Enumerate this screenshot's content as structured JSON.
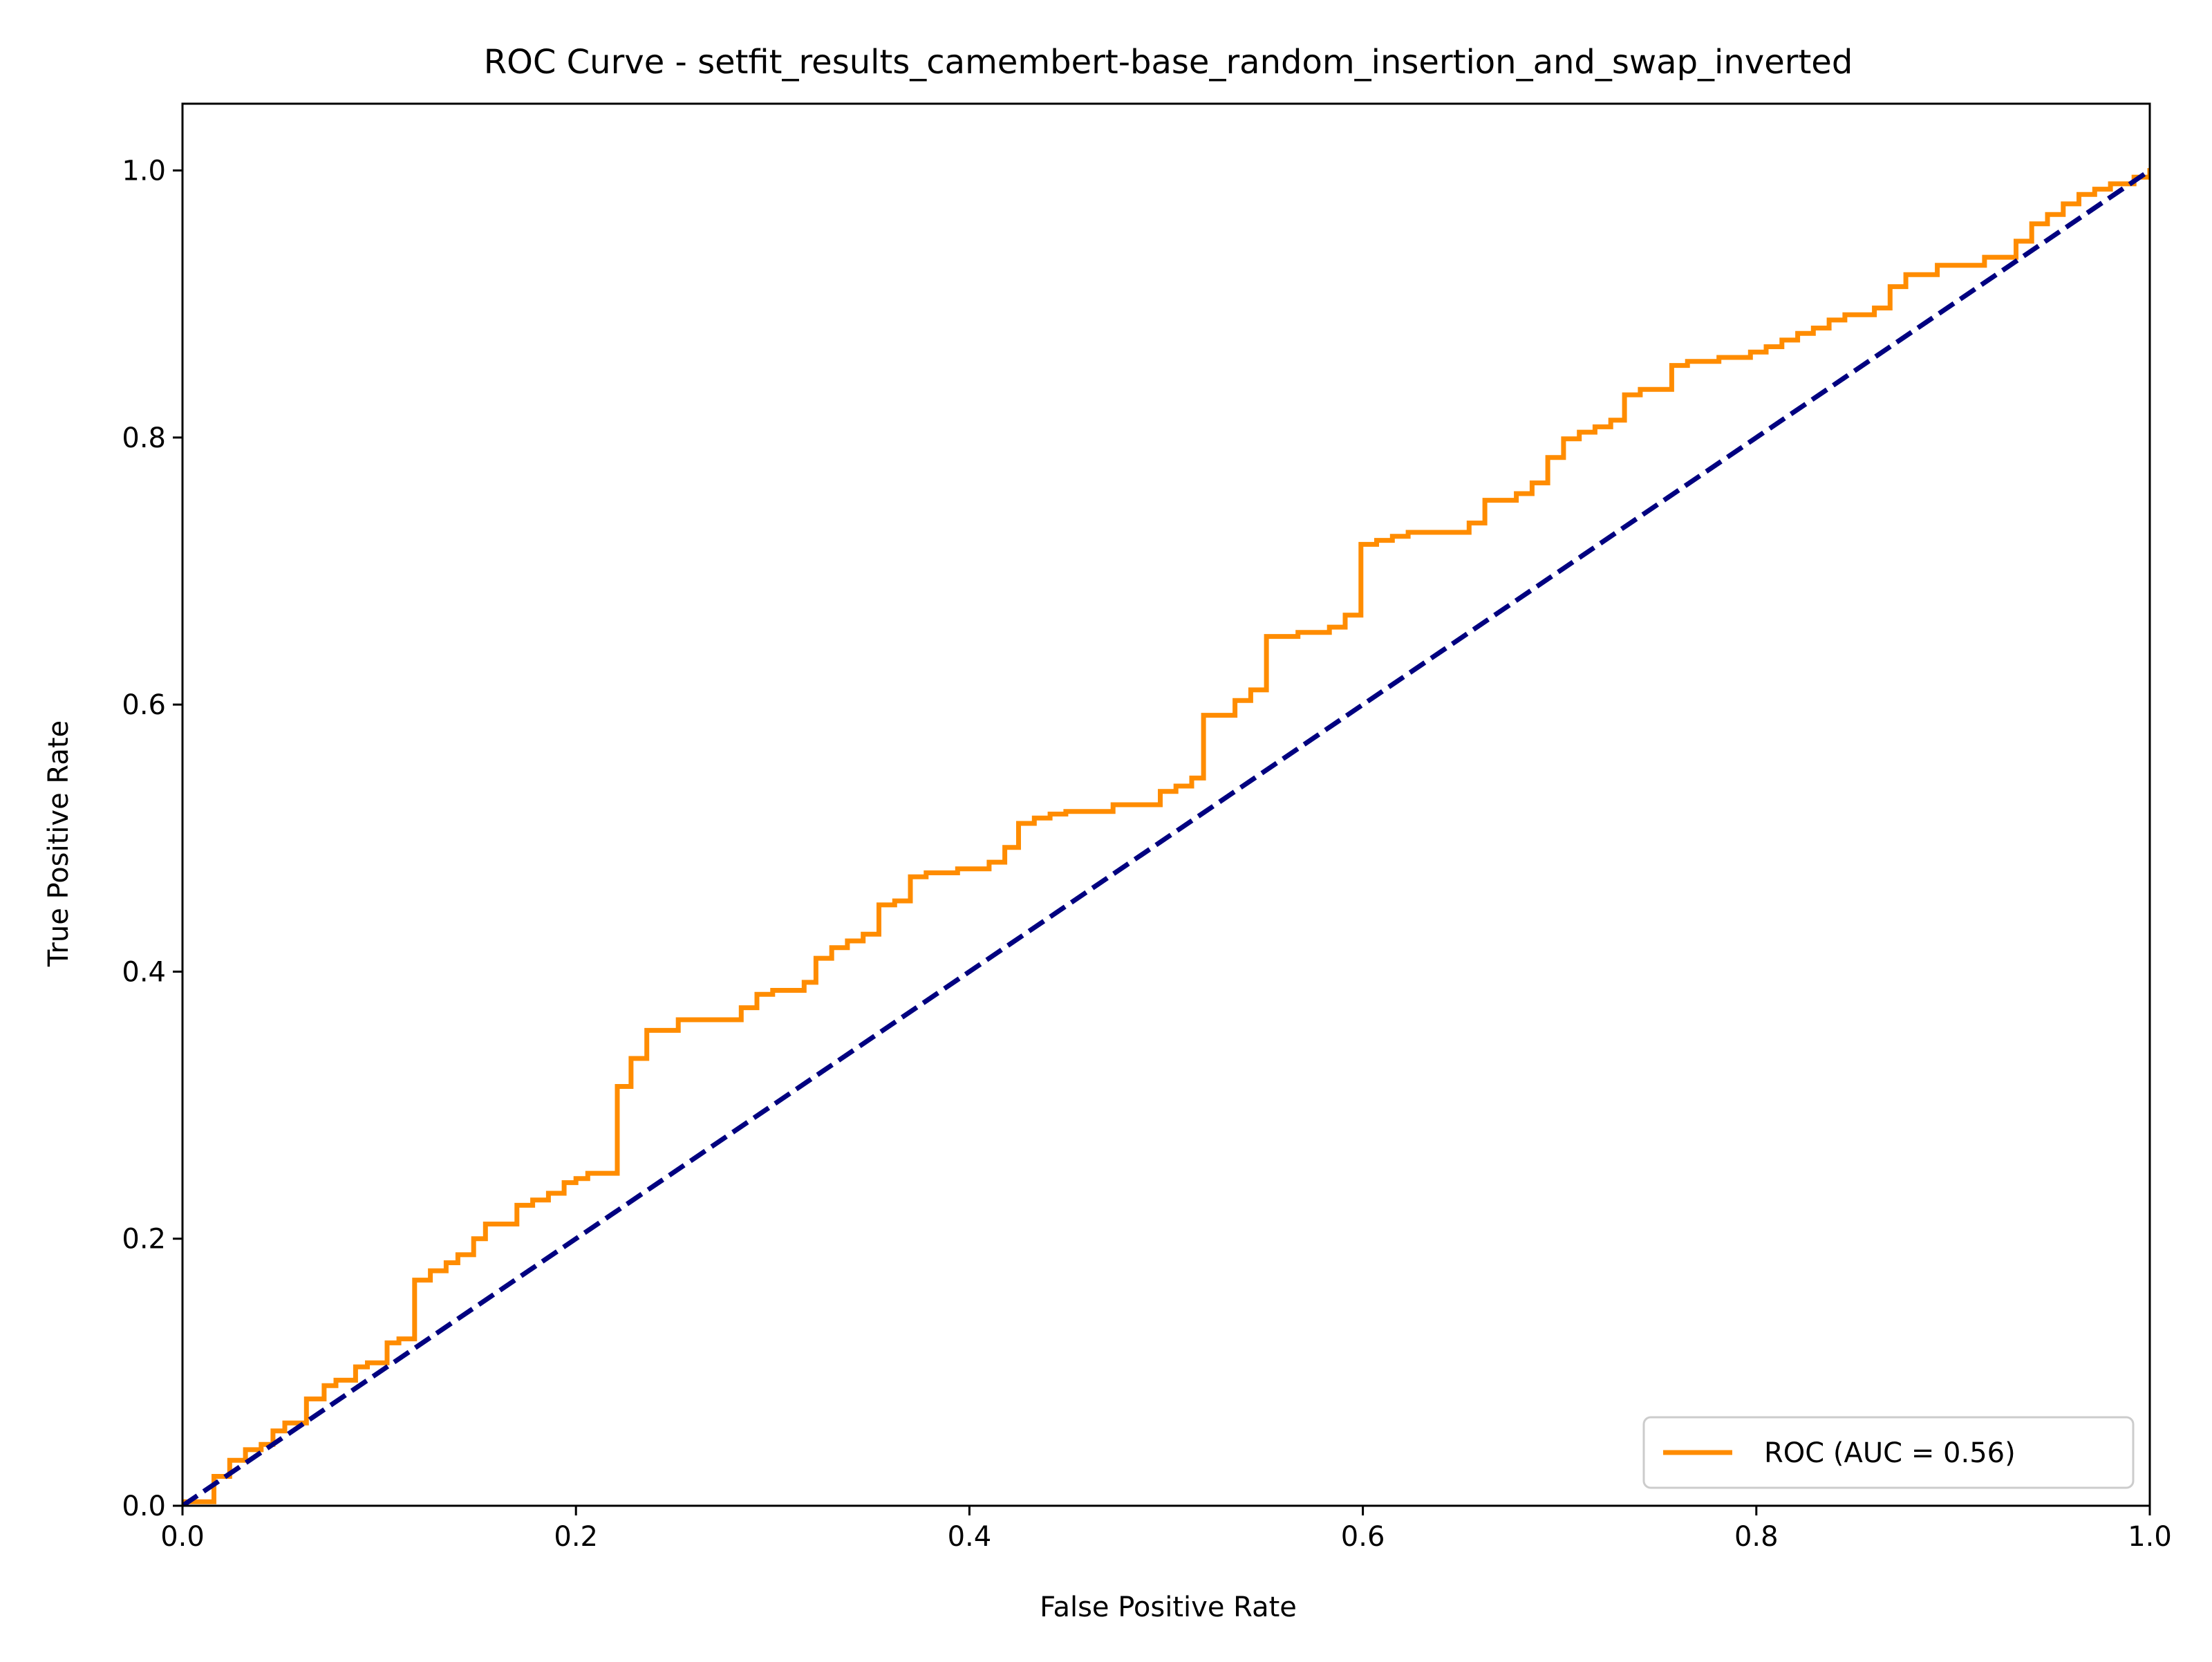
{
  "chart_data": {
    "type": "line",
    "title": "ROC Curve - setfit_results_camembert-base_random_insertion_and_swap_inverted",
    "xlabel": "False Positive Rate",
    "ylabel": "True Positive Rate",
    "xlim": [
      0.0,
      1.0
    ],
    "ylim": [
      0.0,
      1.05
    ],
    "xticks": [
      0.0,
      0.2,
      0.4,
      0.6,
      0.8,
      1.0
    ],
    "xtick_labels": [
      "0.0",
      "0.2",
      "0.4",
      "0.6",
      "0.8",
      "1.0"
    ],
    "yticks": [
      0.0,
      0.2,
      0.4,
      0.6,
      0.8,
      1.0
    ],
    "ytick_labels": [
      "0.0",
      "0.2",
      "0.4",
      "0.6",
      "0.8",
      "1.0"
    ],
    "grid": false,
    "legend_position": "lower-right",
    "series": [
      {
        "name": "ROC (AUC = 0.56)",
        "color": "#ff8c00",
        "style": "solid",
        "step": true,
        "points": [
          [
            0.0,
            0.0
          ],
          [
            0.0,
            0.003
          ],
          [
            0.016,
            0.003
          ],
          [
            0.016,
            0.022
          ],
          [
            0.024,
            0.022
          ],
          [
            0.024,
            0.034
          ],
          [
            0.032,
            0.034
          ],
          [
            0.032,
            0.042
          ],
          [
            0.04,
            0.042
          ],
          [
            0.04,
            0.046
          ],
          [
            0.046,
            0.046
          ],
          [
            0.046,
            0.056
          ],
          [
            0.052,
            0.056
          ],
          [
            0.052,
            0.062
          ],
          [
            0.063,
            0.062
          ],
          [
            0.063,
            0.08
          ],
          [
            0.072,
            0.08
          ],
          [
            0.072,
            0.09
          ],
          [
            0.078,
            0.09
          ],
          [
            0.078,
            0.094
          ],
          [
            0.088,
            0.094
          ],
          [
            0.088,
            0.104
          ],
          [
            0.094,
            0.104
          ],
          [
            0.094,
            0.107
          ],
          [
            0.104,
            0.107
          ],
          [
            0.104,
            0.122
          ],
          [
            0.11,
            0.122
          ],
          [
            0.11,
            0.125
          ],
          [
            0.118,
            0.125
          ],
          [
            0.118,
            0.169
          ],
          [
            0.126,
            0.169
          ],
          [
            0.126,
            0.176
          ],
          [
            0.134,
            0.176
          ],
          [
            0.134,
            0.182
          ],
          [
            0.14,
            0.182
          ],
          [
            0.14,
            0.188
          ],
          [
            0.148,
            0.188
          ],
          [
            0.148,
            0.2
          ],
          [
            0.154,
            0.2
          ],
          [
            0.154,
            0.211
          ],
          [
            0.17,
            0.211
          ],
          [
            0.17,
            0.225
          ],
          [
            0.178,
            0.225
          ],
          [
            0.178,
            0.229
          ],
          [
            0.186,
            0.229
          ],
          [
            0.186,
            0.234
          ],
          [
            0.194,
            0.234
          ],
          [
            0.194,
            0.242
          ],
          [
            0.2,
            0.242
          ],
          [
            0.2,
            0.245
          ],
          [
            0.206,
            0.245
          ],
          [
            0.206,
            0.249
          ],
          [
            0.221,
            0.249
          ],
          [
            0.221,
            0.314
          ],
          [
            0.228,
            0.314
          ],
          [
            0.228,
            0.335
          ],
          [
            0.236,
            0.335
          ],
          [
            0.236,
            0.356
          ],
          [
            0.252,
            0.356
          ],
          [
            0.252,
            0.364
          ],
          [
            0.284,
            0.364
          ],
          [
            0.284,
            0.373
          ],
          [
            0.292,
            0.373
          ],
          [
            0.292,
            0.383
          ],
          [
            0.3,
            0.383
          ],
          [
            0.3,
            0.386
          ],
          [
            0.316,
            0.386
          ],
          [
            0.316,
            0.392
          ],
          [
            0.322,
            0.392
          ],
          [
            0.322,
            0.41
          ],
          [
            0.33,
            0.41
          ],
          [
            0.33,
            0.418
          ],
          [
            0.338,
            0.418
          ],
          [
            0.338,
            0.423
          ],
          [
            0.346,
            0.423
          ],
          [
            0.346,
            0.428
          ],
          [
            0.354,
            0.428
          ],
          [
            0.354,
            0.45
          ],
          [
            0.362,
            0.45
          ],
          [
            0.362,
            0.453
          ],
          [
            0.37,
            0.453
          ],
          [
            0.37,
            0.471
          ],
          [
            0.378,
            0.471
          ],
          [
            0.378,
            0.474
          ],
          [
            0.394,
            0.474
          ],
          [
            0.394,
            0.477
          ],
          [
            0.41,
            0.477
          ],
          [
            0.41,
            0.482
          ],
          [
            0.418,
            0.482
          ],
          [
            0.418,
            0.493
          ],
          [
            0.425,
            0.493
          ],
          [
            0.425,
            0.511
          ],
          [
            0.433,
            0.511
          ],
          [
            0.433,
            0.515
          ],
          [
            0.441,
            0.515
          ],
          [
            0.441,
            0.518
          ],
          [
            0.449,
            0.518
          ],
          [
            0.449,
            0.52
          ],
          [
            0.473,
            0.52
          ],
          [
            0.473,
            0.525
          ],
          [
            0.497,
            0.525
          ],
          [
            0.497,
            0.535
          ],
          [
            0.505,
            0.535
          ],
          [
            0.505,
            0.539
          ],
          [
            0.513,
            0.539
          ],
          [
            0.513,
            0.545
          ],
          [
            0.519,
            0.545
          ],
          [
            0.519,
            0.592
          ],
          [
            0.535,
            0.592
          ],
          [
            0.535,
            0.603
          ],
          [
            0.543,
            0.603
          ],
          [
            0.543,
            0.611
          ],
          [
            0.551,
            0.611
          ],
          [
            0.551,
            0.651
          ],
          [
            0.567,
            0.651
          ],
          [
            0.567,
            0.654
          ],
          [
            0.583,
            0.654
          ],
          [
            0.583,
            0.658
          ],
          [
            0.591,
            0.658
          ],
          [
            0.591,
            0.667
          ],
          [
            0.599,
            0.667
          ],
          [
            0.599,
            0.72
          ],
          [
            0.607,
            0.72
          ],
          [
            0.607,
            0.723
          ],
          [
            0.615,
            0.723
          ],
          [
            0.615,
            0.726
          ],
          [
            0.623,
            0.726
          ],
          [
            0.623,
            0.729
          ],
          [
            0.654,
            0.729
          ],
          [
            0.654,
            0.736
          ],
          [
            0.662,
            0.736
          ],
          [
            0.662,
            0.753
          ],
          [
            0.678,
            0.753
          ],
          [
            0.678,
            0.758
          ],
          [
            0.686,
            0.758
          ],
          [
            0.686,
            0.766
          ],
          [
            0.694,
            0.766
          ],
          [
            0.694,
            0.785
          ],
          [
            0.702,
            0.785
          ],
          [
            0.702,
            0.799
          ],
          [
            0.71,
            0.799
          ],
          [
            0.71,
            0.804
          ],
          [
            0.718,
            0.804
          ],
          [
            0.718,
            0.808
          ],
          [
            0.726,
            0.808
          ],
          [
            0.726,
            0.813
          ],
          [
            0.733,
            0.813
          ],
          [
            0.733,
            0.832
          ],
          [
            0.741,
            0.832
          ],
          [
            0.741,
            0.836
          ],
          [
            0.757,
            0.836
          ],
          [
            0.757,
            0.854
          ],
          [
            0.765,
            0.854
          ],
          [
            0.765,
            0.857
          ],
          [
            0.781,
            0.857
          ],
          [
            0.781,
            0.86
          ],
          [
            0.797,
            0.86
          ],
          [
            0.797,
            0.864
          ],
          [
            0.805,
            0.864
          ],
          [
            0.805,
            0.868
          ],
          [
            0.813,
            0.868
          ],
          [
            0.813,
            0.873
          ],
          [
            0.821,
            0.873
          ],
          [
            0.821,
            0.878
          ],
          [
            0.829,
            0.878
          ],
          [
            0.829,
            0.882
          ],
          [
            0.837,
            0.882
          ],
          [
            0.837,
            0.888
          ],
          [
            0.845,
            0.888
          ],
          [
            0.845,
            0.892
          ],
          [
            0.86,
            0.892
          ],
          [
            0.86,
            0.897
          ],
          [
            0.868,
            0.897
          ],
          [
            0.868,
            0.913
          ],
          [
            0.876,
            0.913
          ],
          [
            0.876,
            0.922
          ],
          [
            0.892,
            0.922
          ],
          [
            0.892,
            0.929
          ],
          [
            0.916,
            0.929
          ],
          [
            0.916,
            0.935
          ],
          [
            0.932,
            0.935
          ],
          [
            0.932,
            0.947
          ],
          [
            0.94,
            0.947
          ],
          [
            0.94,
            0.96
          ],
          [
            0.948,
            0.96
          ],
          [
            0.948,
            0.967
          ],
          [
            0.956,
            0.967
          ],
          [
            0.956,
            0.975
          ],
          [
            0.964,
            0.975
          ],
          [
            0.964,
            0.982
          ],
          [
            0.972,
            0.982
          ],
          [
            0.972,
            0.986
          ],
          [
            0.98,
            0.986
          ],
          [
            0.98,
            0.99
          ],
          [
            0.992,
            0.99
          ],
          [
            0.992,
            0.995
          ],
          [
            1.0,
            0.995
          ],
          [
            1.0,
            1.0
          ]
        ]
      },
      {
        "name": "",
        "color": "#000080",
        "style": "dashed",
        "points": [
          [
            0.0,
            0.0
          ],
          [
            1.0,
            1.0
          ]
        ]
      }
    ]
  }
}
